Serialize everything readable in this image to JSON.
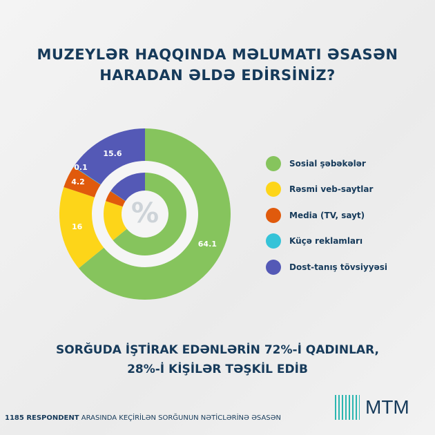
{
  "title_line1": "MUZEYLƏR HAQQINDA MƏLUMATI ƏSASƏN",
  "title_line2": "HARADAN ƏLDƏ EDİRSİNİZ?",
  "chart_data": {
    "type": "pie",
    "style": "double donut",
    "center_label": "%",
    "categories": [
      "Sosial şəbəkələr",
      "Rəsmi veb-saytlar",
      "Media (TV, sayt)",
      "Küçə reklamları",
      "Dost-tanış tövsiyyəsi"
    ],
    "values": [
      64.1,
      16,
      4.2,
      0.1,
      15.6
    ],
    "data_labels": [
      "64.1",
      "16",
      "4.2",
      "0.1",
      "15.6"
    ],
    "colors": [
      "#86c45d",
      "#fdd519",
      "#e05a0c",
      "#35c3d8",
      "#5459b6"
    ],
    "legend_position": "right"
  },
  "note_line1": "SORĞUDA İŞTİRAK EDƏNLƏRİN 72%-İ QADINLAR,",
  "note_line2": "28%-İ KİŞİLƏR TƏŞKİL EDİB",
  "footer_bold": "1185 RESPONDENT",
  "footer_rest": " ARASINDA KEÇİRİLƏN SORĞUNUN NƏTİCLƏRİNƏ ƏSASƏN",
  "logo": "MTM"
}
